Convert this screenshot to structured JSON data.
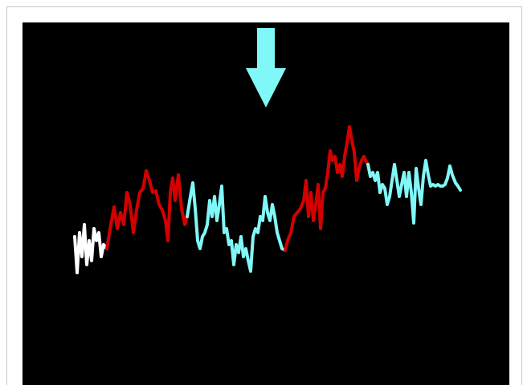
{
  "chart_data": {
    "type": "line",
    "xlim": [
      0,
      480
    ],
    "ylim": [
      0,
      452
    ],
    "series": [
      {
        "color": "#ffffff",
        "x": [
          0,
          3,
          6,
          9,
          12,
          15,
          18,
          21,
          24,
          27,
          30,
          33,
          36,
          40
        ],
        "values": [
          185,
          140,
          190,
          160,
          200,
          150,
          180,
          155,
          195,
          180,
          190,
          160,
          175,
          170
        ]
      },
      {
        "color": "#d40000",
        "x": [
          40,
          45,
          49,
          53,
          57,
          61,
          65,
          69,
          73,
          77,
          81,
          85,
          89,
          93,
          97,
          101,
          105,
          109,
          113,
          116,
          119,
          122,
          125,
          129,
          133,
          137,
          140
        ],
        "values": [
          170,
          200,
          222,
          195,
          215,
          200,
          240,
          225,
          190,
          218,
          240,
          245,
          267,
          255,
          240,
          242,
          225,
          218,
          205,
          180,
          240,
          258,
          230,
          262,
          220,
          200,
          210
        ]
      },
      {
        "color": "#80f8f8",
        "x": [
          140,
          144,
          147,
          150,
          153,
          156,
          159,
          162,
          165,
          168,
          171,
          174,
          177,
          180,
          183,
          186,
          189,
          192,
          195,
          198,
          201,
          204,
          207,
          210,
          213,
          216,
          219,
          222,
          225,
          228,
          231,
          234,
          237,
          240,
          243,
          246,
          249,
          252,
          255,
          258,
          262
        ],
        "values": [
          210,
          235,
          252,
          220,
          180,
          170,
          185,
          190,
          200,
          230,
          210,
          235,
          205,
          225,
          248,
          190,
          195,
          175,
          180,
          150,
          175,
          165,
          185,
          160,
          170,
          155,
          142,
          185,
          195,
          190,
          210,
          205,
          235,
          215,
          205,
          225,
          210,
          190,
          180,
          170,
          168
        ]
      },
      {
        "color": "#d40000",
        "x": [
          262,
          265,
          269,
          273,
          277,
          281,
          285,
          288,
          291,
          294,
          297,
          300,
          303,
          306,
          309,
          312,
          315,
          318,
          321,
          324,
          327,
          330,
          333,
          336,
          339,
          342,
          345,
          348,
          351,
          354,
          357,
          360,
          362,
          365
        ],
        "values": [
          168,
          180,
          190,
          210,
          215,
          220,
          230,
          255,
          210,
          240,
          205,
          225,
          250,
          195,
          240,
          245,
          265,
          292,
          280,
          285,
          265,
          275,
          260,
          285,
          302,
          322,
          305,
          290,
          255,
          270,
          280,
          285,
          280,
          275
        ]
      },
      {
        "color": "#80f8f8",
        "x": [
          365,
          368,
          371,
          374,
          377,
          380,
          383,
          386,
          389,
          392,
          395,
          398,
          401,
          404,
          407,
          410,
          413,
          416,
          419,
          422,
          425,
          428,
          431,
          434,
          437,
          440,
          443,
          446,
          449,
          452,
          455,
          458,
          461,
          464,
          467,
          470,
          474,
          477,
          480
        ],
        "values": [
          275,
          260,
          265,
          255,
          265,
          240,
          250,
          245,
          225,
          235,
          255,
          275,
          255,
          235,
          250,
          265,
          235,
          265,
          240,
          202,
          270,
          245,
          225,
          260,
          280,
          262,
          248,
          250,
          248,
          250,
          248,
          248,
          250,
          258,
          273,
          262,
          252,
          248,
          243
        ]
      }
    ]
  }
}
